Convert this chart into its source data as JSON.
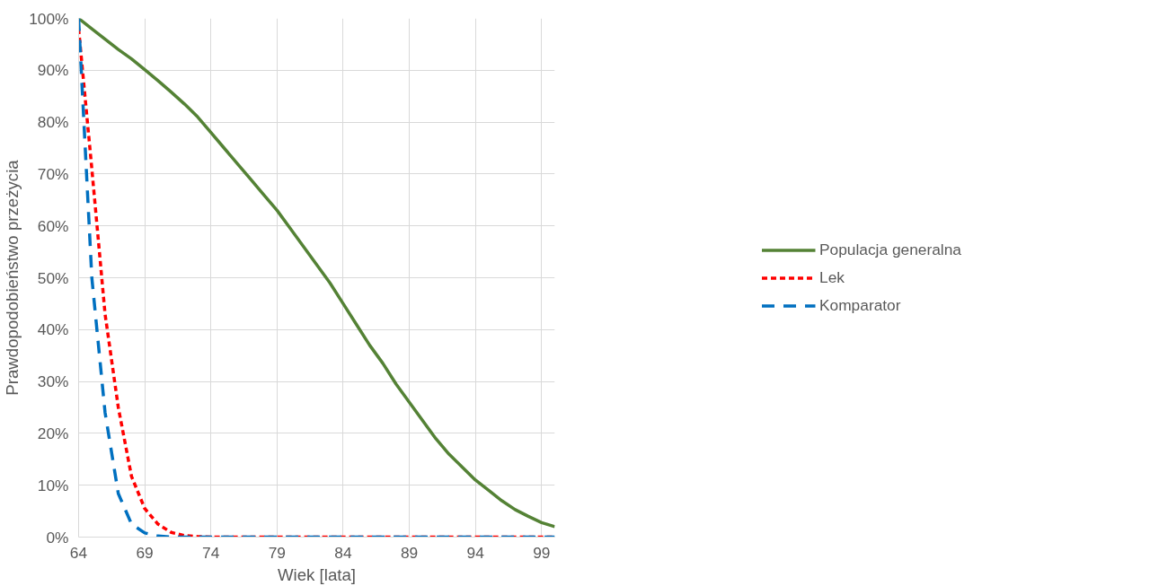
{
  "chart_data": {
    "type": "line",
    "xlabel": "Wiek [lata]",
    "ylabel": "Prawdopodobieństwo przeżycia",
    "x": [
      64,
      65,
      66,
      67,
      68,
      69,
      70,
      71,
      72,
      73,
      74,
      75,
      76,
      77,
      78,
      79,
      80,
      81,
      82,
      83,
      84,
      85,
      86,
      87,
      88,
      89,
      90,
      91,
      92,
      93,
      94,
      95,
      96,
      97,
      98,
      99,
      100
    ],
    "series": [
      {
        "name": "Populacja generalna",
        "color": "#548235",
        "line_style": "solid",
        "values": [
          100,
          98,
          96,
          94,
          92.2,
          90.1,
          88,
          85.8,
          83.5,
          81,
          78,
          75,
          72,
          69,
          66,
          63,
          59.5,
          56,
          52.5,
          49,
          45,
          41,
          37,
          33.5,
          29.5,
          26,
          22.5,
          19,
          16,
          13.5,
          11,
          9,
          7,
          5.3,
          4,
          2.8,
          2
        ]
      },
      {
        "name": "Lek",
        "color": "#ff0000",
        "line_style": "dotted",
        "values": [
          98,
          71,
          43,
          25,
          11.7,
          5.5,
          2.5,
          0.9,
          0.3,
          0.1,
          0,
          0,
          0,
          0,
          0,
          0,
          0,
          0,
          0,
          0,
          0,
          0,
          0,
          0,
          0,
          0,
          0,
          0,
          0,
          0,
          0,
          0,
          0,
          0,
          0,
          0,
          0
        ]
      },
      {
        "name": "Komparator",
        "color": "#0070c0",
        "line_style": "dashed",
        "values": [
          100,
          50,
          24,
          8.4,
          2.5,
          0.8,
          0.2,
          0,
          0,
          0,
          0,
          0,
          0,
          0,
          0,
          0,
          0,
          0,
          0,
          0,
          0,
          0,
          0,
          0,
          0,
          0,
          0,
          0,
          0,
          0,
          0,
          0,
          0,
          0,
          0,
          0,
          0
        ]
      }
    ],
    "xlim": [
      64,
      100
    ],
    "xticks": [
      64,
      69,
      74,
      79,
      84,
      89,
      94,
      99
    ],
    "ylim": [
      0,
      100
    ],
    "yticks": [
      {
        "value": 0,
        "label": "0%"
      },
      {
        "value": 10,
        "label": "10%"
      },
      {
        "value": 20,
        "label": "20%"
      },
      {
        "value": 30,
        "label": "30%"
      },
      {
        "value": 40,
        "label": "40%"
      },
      {
        "value": 50,
        "label": "50%"
      },
      {
        "value": 60,
        "label": "60%"
      },
      {
        "value": 70,
        "label": "70%"
      },
      {
        "value": 80,
        "label": "80%"
      },
      {
        "value": 90,
        "label": "90%"
      },
      {
        "value": 100,
        "label": "100%"
      }
    ],
    "grid": true,
    "legend": "right"
  }
}
